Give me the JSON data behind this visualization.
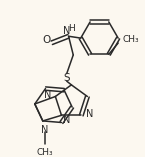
{
  "bg_color": "#fcf8f0",
  "line_color": "#2a2a2a",
  "text_color": "#2a2a2a",
  "figsize": [
    1.45,
    1.57
  ],
  "dpi": 100,
  "xlim": [
    0,
    145
  ],
  "ylim": [
    0,
    157
  ]
}
